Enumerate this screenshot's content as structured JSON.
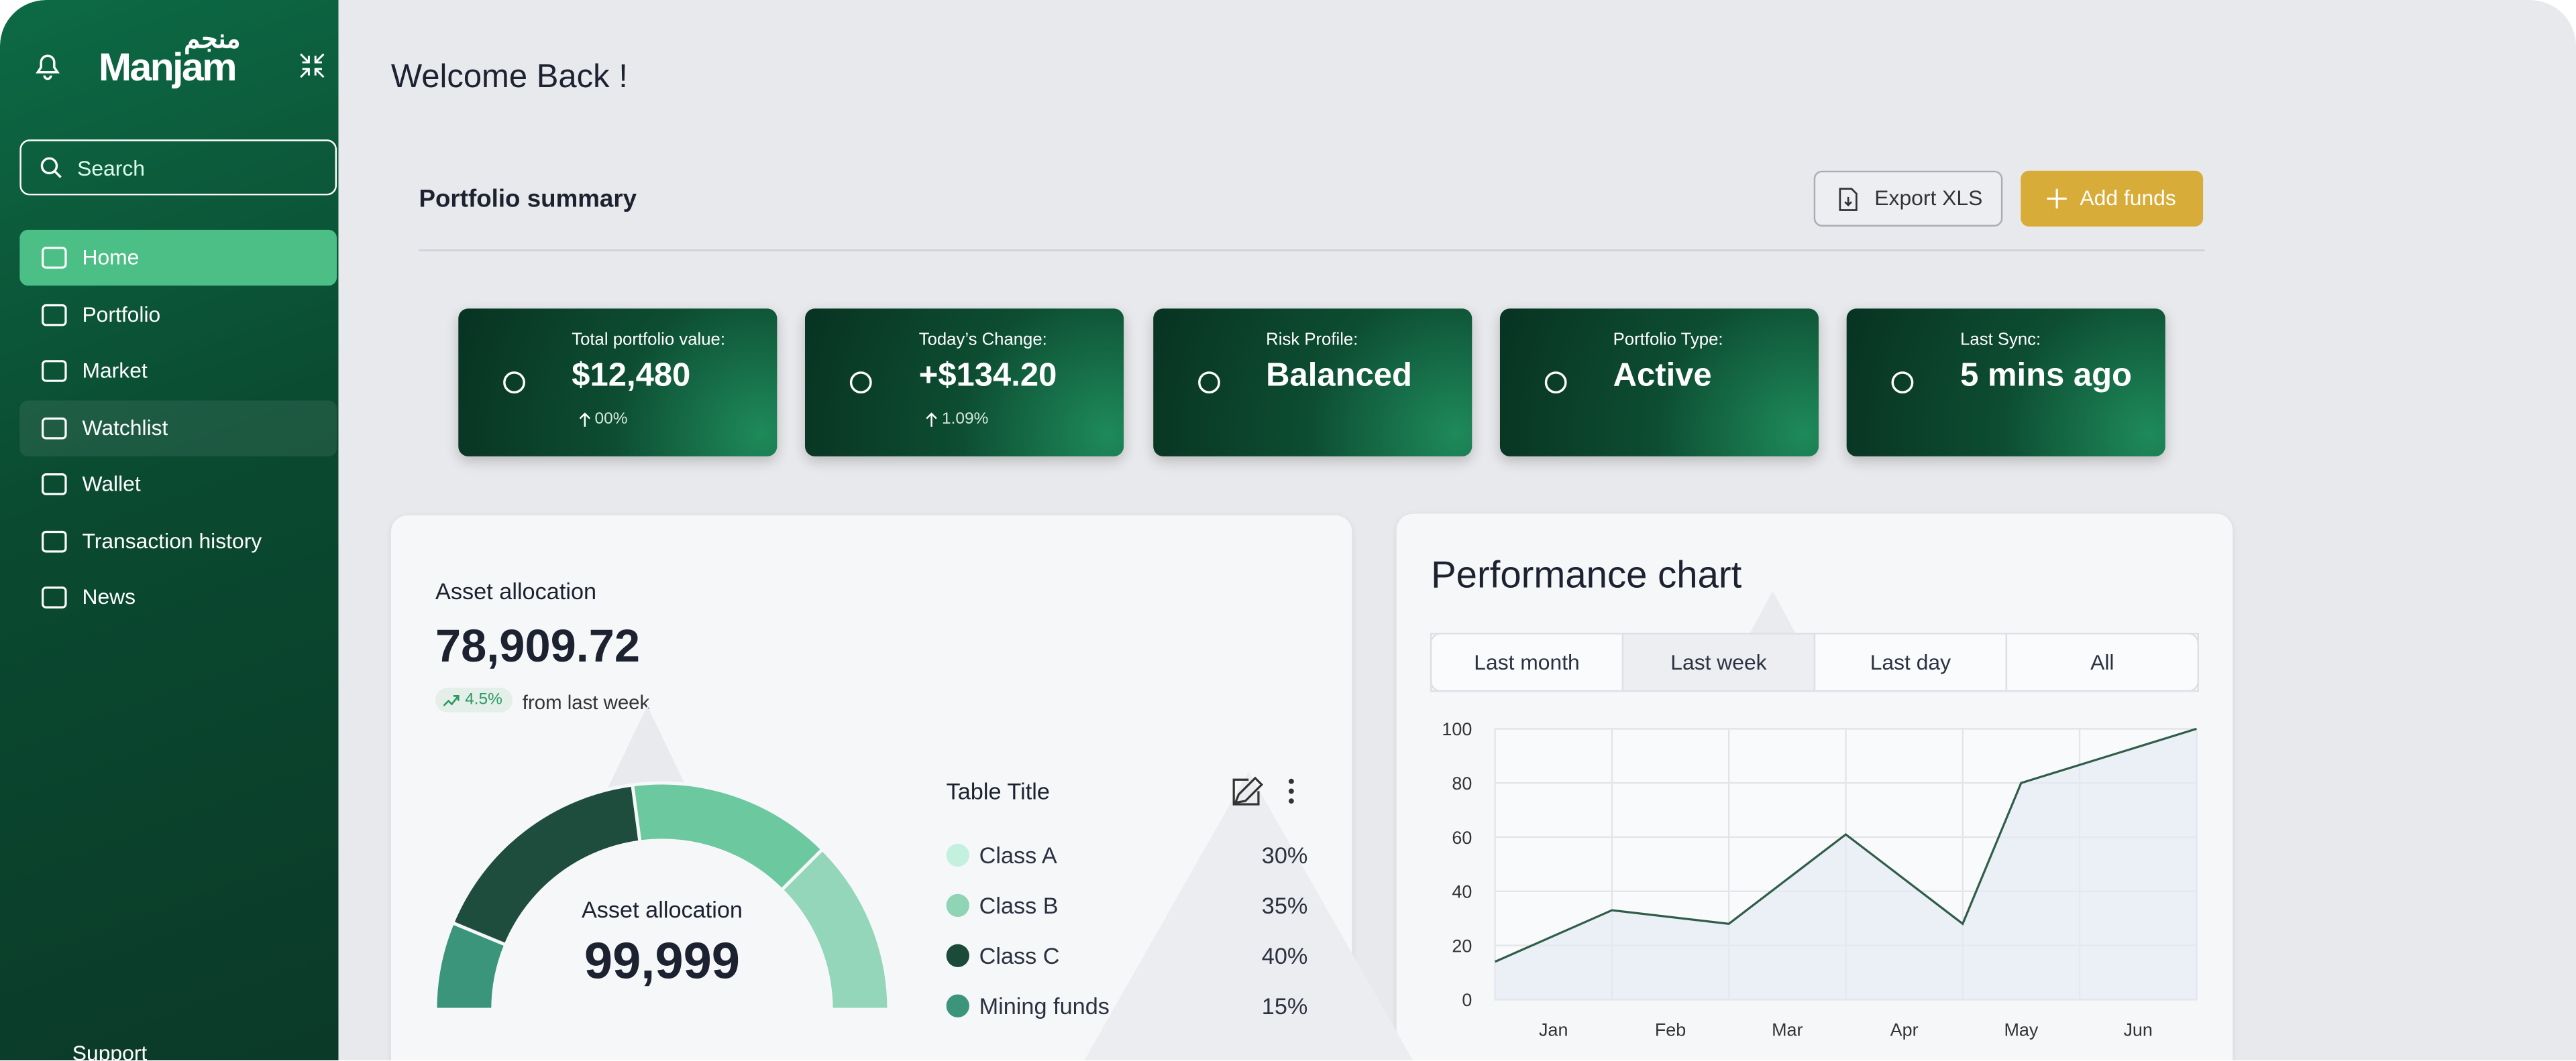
{
  "sidebar": {
    "logo": "Manjam",
    "logo_arabic": "منجم",
    "search_placeholder": "Search",
    "nav": [
      "Home",
      "Portfolio",
      "Market",
      "Watchlist",
      "Wallet",
      "Transaction history",
      "News"
    ],
    "active_nav": 0,
    "support": "Support"
  },
  "header": {
    "title": "Welcome Back !"
  },
  "portfolio": {
    "title": "Portfolio summary",
    "export": "Export XLS",
    "add": "Add funds"
  },
  "cards": [
    {
      "label": "Total portfolio value:",
      "value": "$12,480",
      "change": "00%"
    },
    {
      "label": "Today’s Change:",
      "value": "+$134.20",
      "change": "1.09%"
    },
    {
      "label": "Risk Profile:",
      "value": "Balanced"
    },
    {
      "label": "Portfolio Type:",
      "value": "Active"
    },
    {
      "label": "Last Sync:",
      "value": "5 mins ago"
    }
  ],
  "asset_allocation": {
    "title": "Asset allocation",
    "total": "78,909.72",
    "change": "4.5%",
    "change_note": "from last week"
  },
  "chart_data": [
    {
      "type": "donut",
      "center_title": "Asset allocation",
      "center_value": "99,999",
      "table_title": "Table Title",
      "categories": [
        "Class A",
        "Class B",
        "Class C",
        "Mining funds"
      ],
      "values": [
        30,
        35,
        40,
        15
      ],
      "value_labels": [
        "30%",
        "35%",
        "40%",
        "15%"
      ],
      "colors": [
        "#c4f1df",
        "#8fd4b5",
        "#1b4a39",
        "#3a957a"
      ],
      "arc_colors": [
        "#93d6b9",
        "#6cc89f",
        "#1f4d3d",
        "#3a957a"
      ]
    },
    {
      "type": "line",
      "title": "Performance chart",
      "tabs": [
        "Last month",
        "Last week",
        "Last day",
        "All"
      ],
      "active_tab": 1,
      "x": [
        0,
        1,
        2,
        3,
        4,
        4.5,
        6
      ],
      "values": [
        14,
        33,
        28,
        61,
        28,
        80,
        100
      ],
      "color": "#2f5d48",
      "xlim": [
        0,
        6
      ],
      "xticks": [
        {
          "value": 0.5,
          "label": "Jan"
        },
        {
          "value": 1.5,
          "label": "Feb"
        },
        {
          "value": 2.5,
          "label": "Mar"
        },
        {
          "value": 3.5,
          "label": "Apr"
        },
        {
          "value": 4.5,
          "label": "May"
        },
        {
          "value": 5.5,
          "label": "Jun"
        }
      ],
      "ylim": [
        0,
        100
      ],
      "yticks": [
        0,
        20,
        40,
        60,
        80,
        100
      ],
      "grid": true
    }
  ]
}
